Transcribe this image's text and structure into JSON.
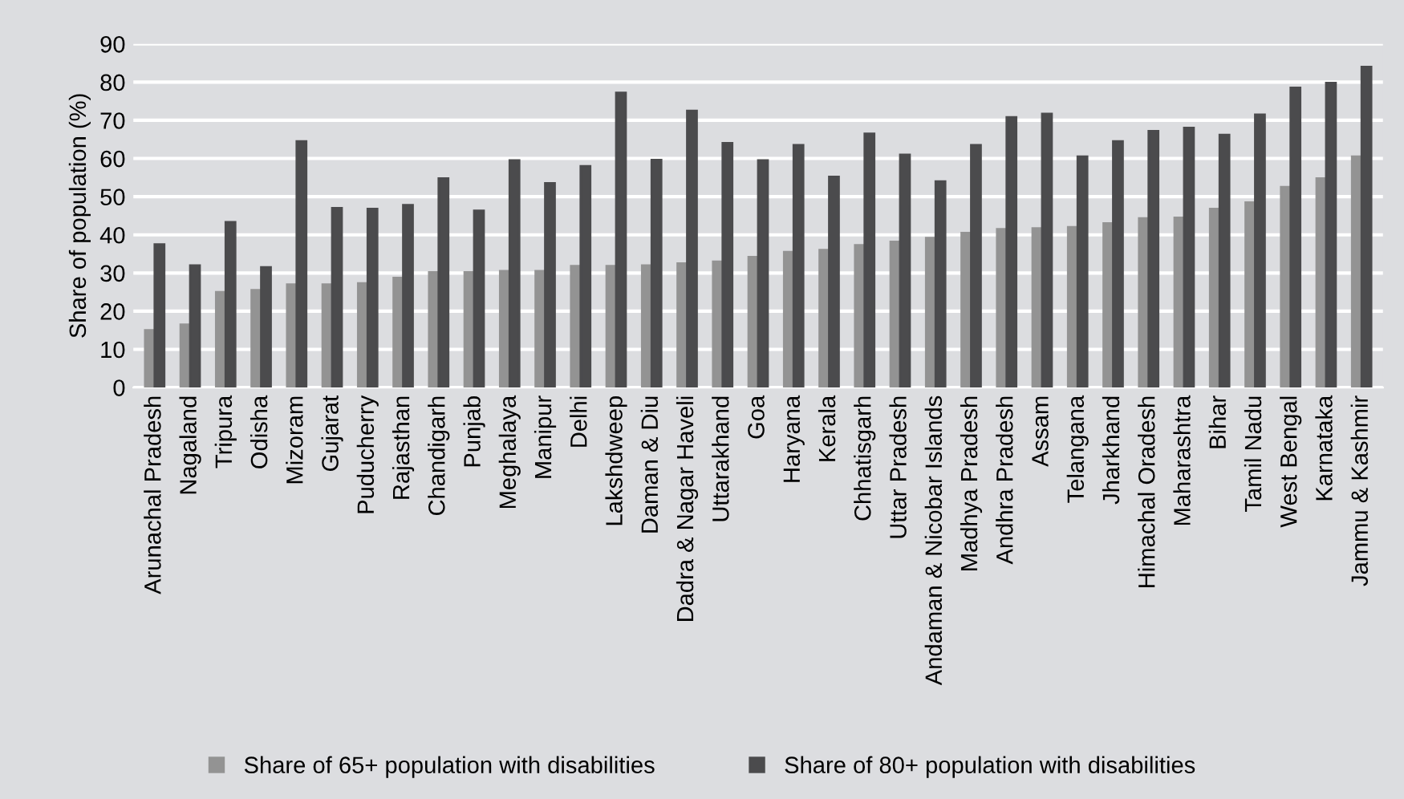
{
  "chart_data": {
    "type": "bar",
    "ylabel": "Share of population (%)",
    "categories": [
      "Arunachal Pradesh",
      "Nagaland",
      "Tripura",
      "Odisha",
      "Mizoram",
      "Gujarat",
      "Puducherry",
      "Rajasthan",
      "Chandigarh",
      "Punjab",
      "Meghalaya",
      "Manipur",
      "Delhi",
      "Lakshdweep",
      "Daman & Diu",
      "Dadra & Nagar Haveli",
      "Uttarakhand",
      "Goa",
      "Haryana",
      "Kerala",
      "Chhatisgarh",
      "Uttar Pradesh",
      "Andaman & Nicobar Islands",
      "Madhya Pradesh",
      "Andhra Pradesh",
      "Assam",
      "Telangana",
      "Jharkhand",
      "Himachal Oradesh",
      "Maharashtra",
      "Bihar",
      "Tamil Nadu",
      "West Bengal",
      "Karnataka",
      "Jammu & Kashmir"
    ],
    "series": [
      {
        "name": "Share of 65+ population with disabilities",
        "color": "#939393",
        "values": [
          15,
          16.5,
          25,
          25.5,
          27,
          27,
          27.3,
          28.7,
          30.2,
          30.2,
          30.5,
          30.5,
          31.8,
          31.8,
          32,
          32.5,
          33,
          34.2,
          35.5,
          36,
          37.3,
          38.2,
          39.2,
          40.5,
          41.5,
          41.7,
          42,
          43,
          44.3,
          44.5,
          46.8,
          48.5,
          52.5,
          54.8,
          60.5
        ]
      },
      {
        "name": "Share of 80+ population with disabilities",
        "color": "#4b4b4d",
        "values": [
          37.5,
          32,
          43.3,
          31.5,
          64.5,
          47,
          46.8,
          47.8,
          54.8,
          46.3,
          59.5,
          53.5,
          58,
          77.2,
          59.6,
          72.5,
          64,
          59.5,
          63.5,
          55.2,
          66.5,
          61,
          54,
          63.5,
          70.8,
          71.7,
          60.5,
          64.5,
          67.2,
          68,
          66.2,
          71.5,
          78.5,
          79.8,
          84
        ]
      }
    ],
    "ylim": [
      0,
      90
    ],
    "yticks": [
      0,
      10,
      20,
      30,
      40,
      50,
      60,
      70,
      80,
      90
    ],
    "grid": "y",
    "legend": "bottom"
  }
}
